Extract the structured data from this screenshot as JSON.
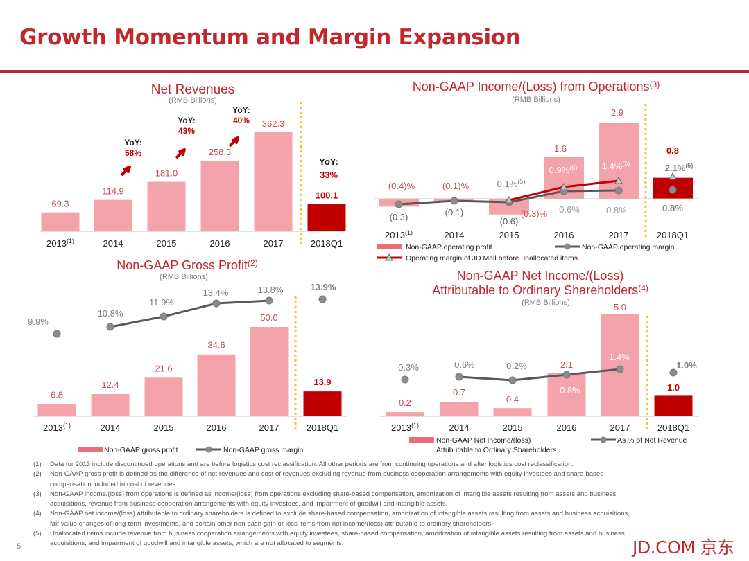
{
  "page": {
    "title": "Growth Momentum and Margin Expansion",
    "page_number": "5",
    "brand": "JD.COM 京东"
  },
  "colors": {
    "brand_red": "#c0282d",
    "bar_pink": "#f4a3aa",
    "bar_highlight": "#c00000",
    "line_gray": "#595959",
    "marker_gray": "#8c8c8c",
    "divider_yellow": "#f2c230"
  },
  "chart_data": [
    {
      "id": "net_revenues",
      "type": "bar",
      "title": "Net Revenues",
      "unit": "(RMB Billions)",
      "categories": [
        "2013",
        "2014",
        "2015",
        "2016",
        "2017",
        "2018Q1"
      ],
      "category_notes": [
        "(1)",
        "",
        "",
        "",
        "",
        ""
      ],
      "values": [
        69.3,
        114.9,
        181.0,
        258.3,
        362.3,
        100.1
      ],
      "value_labels": [
        "69.3",
        "114.9",
        "181.0",
        "258.3",
        "362.3",
        "100.1"
      ],
      "highlight": [
        false,
        false,
        false,
        false,
        false,
        true
      ],
      "yoy": [
        {
          "label": "YoY:",
          "value": "58%",
          "arrow": "up-arrow-icon"
        },
        {
          "label": "YoY:",
          "value": "43%",
          "arrow": "up-arrow-icon"
        },
        {
          "label": "YoY:",
          "value": "40%",
          "arrow": "up-arrow-icon"
        },
        {
          "label": "YoY:",
          "value": "33%",
          "arrow": ""
        }
      ],
      "ylim": [
        0,
        380
      ]
    },
    {
      "id": "non_gaap_op_income",
      "type": "bar+line",
      "title": "Non-GAAP Income/(Loss) from Operations",
      "title_note": "(3)",
      "unit": "(RMB Billions)",
      "categories": [
        "2013",
        "2014",
        "2015",
        "2016",
        "2017",
        "2018Q1"
      ],
      "category_notes": [
        "(1)",
        "",
        "",
        "",
        "",
        ""
      ],
      "values": [
        -0.3,
        -0.1,
        -0.6,
        1.6,
        2.9,
        0.8
      ],
      "value_labels": [
        "(0.3)",
        "(0.1)",
        "(0.6)",
        "1.6",
        "2.9",
        "0.8"
      ],
      "highlight": [
        false,
        false,
        false,
        false,
        false,
        true
      ],
      "margin_labels": [
        "(0.4)%",
        "(0.1)%",
        "(0.3)%",
        "0.6%",
        "0.8%",
        "0.8%"
      ],
      "margin_values": [
        -0.4,
        -0.1,
        -0.3,
        0.6,
        0.8,
        0.8
      ],
      "jd_mall_margin_labels": [
        "0.1%",
        "0.9%",
        "1.4%",
        "2.1%"
      ],
      "jd_mall_margin_values": [
        0.1,
        0.9,
        1.4,
        2.1
      ],
      "jd_mall_note": "(5)",
      "legend": [
        "Non-GAAP operating profit",
        "Non-GAAP operating margin",
        "Operating margin of JD Mall before unallocated items"
      ]
    },
    {
      "id": "non_gaap_gross_profit",
      "type": "bar+line",
      "title": "Non-GAAP Gross Profit",
      "title_note": "(2)",
      "unit": "(RMB Billions)",
      "categories": [
        "2013",
        "2014",
        "2015",
        "2016",
        "2017",
        "2018Q1"
      ],
      "category_notes": [
        "(1)",
        "",
        "",
        "",
        "",
        ""
      ],
      "values": [
        6.8,
        12.4,
        21.6,
        34.6,
        50.0,
        13.9
      ],
      "value_labels": [
        "6.8",
        "12.4",
        "21.6",
        "34.6",
        "50.0",
        "13.9"
      ],
      "highlight": [
        false,
        false,
        false,
        false,
        false,
        true
      ],
      "margin_labels": [
        "9.9%",
        "10.8%",
        "11.9%",
        "13.4%",
        "13.8%",
        "13.9%"
      ],
      "margin_values": [
        9.9,
        10.8,
        11.9,
        13.4,
        13.8,
        13.9
      ],
      "legend": [
        "Non-GAAP gross profit",
        "Non-GAAP gross margin"
      ],
      "ylim": [
        0,
        52
      ]
    },
    {
      "id": "non_gaap_net_income",
      "type": "bar+line",
      "title_line1": "Non-GAAP Net Income/(Loss)",
      "title_line2": "Attributable to Ordinary Shareholders",
      "title_note": "(4)",
      "unit": "(RMB Billions)",
      "categories": [
        "2013",
        "2014",
        "2015",
        "2016",
        "2017",
        "2018Q1"
      ],
      "category_notes": [
        "(1)",
        "",
        "",
        "",
        "",
        ""
      ],
      "values": [
        0.2,
        0.7,
        0.4,
        2.1,
        5.0,
        1.0
      ],
      "value_labels": [
        "0.2",
        "0.7",
        "0.4",
        "2.1",
        "5.0",
        "1.0"
      ],
      "highlight": [
        false,
        false,
        false,
        false,
        false,
        true
      ],
      "margin_labels": [
        "0.3%",
        "0.6%",
        "0.2%",
        "0.8%",
        "1.4%",
        "1.0%"
      ],
      "margin_values": [
        0.3,
        0.6,
        0.2,
        0.8,
        1.4,
        1.0
      ],
      "legend": [
        "Non-GAAP Net income/(loss)",
        "Attributable to Ordinary Shareholders",
        "As % of Net Revenue"
      ],
      "ylim": [
        0,
        5.2
      ]
    }
  ],
  "footnotes": [
    {
      "num": "(1)",
      "text": "Data for 2013 include discontinued operations and are before logistics cost reclassification. All other periods are from continuing operations and after logistics cost reclassification."
    },
    {
      "num": "(2)",
      "text": "Non-GAAP gross profit is defined as the difference of net revenues and cost of revenues excluding revenue from business cooperation arrangements with equity investees and share-based compensation included in cost of revenues."
    },
    {
      "num": "(3)",
      "text": "Non-GAAP income/(loss) from operations is defined as income/(loss) from operations excluding share-based compensation, amortization of intangible assets resulting from assets and business acquisitions, revenue from business cooperation arrangements with equity investees, and impairment of goodwill and intangible assets."
    },
    {
      "num": "(4)",
      "text": "Non-GAAP net income/(loss) attributable to ordinary shareholders is defined to exclude share-based compensation, amortization of intangible assets resulting from assets and business acquisitions, fair value changes of long-term investments, and certain other non-cash gain or loss items from net income/(loss) attributable to ordinary shareholders."
    },
    {
      "num": "(5)",
      "text": "Unallocated items include revenue from business cooperation arrangements with equity investees, share-based compensation, amortization of intangible assets resulting from assets and business acquisitions, and impairment of goodwill and intangible assets, which are not allocated to segments."
    }
  ]
}
